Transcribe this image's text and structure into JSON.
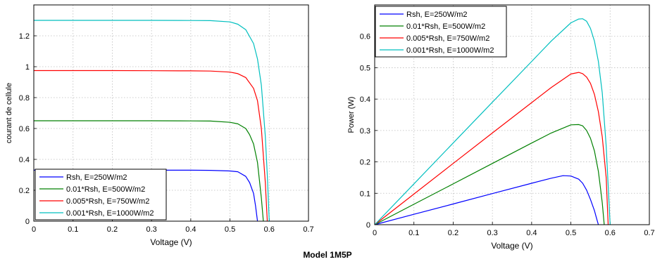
{
  "figure_caption": "Model 1M5P",
  "colors": {
    "series": [
      "#0000ff",
      "#008000",
      "#ff0000",
      "#00bfbf"
    ],
    "grid": "#bdbdbd"
  },
  "chart_data": [
    {
      "type": "line",
      "title": "",
      "xlabel": "Voltage (V)",
      "ylabel": "courant de cellule",
      "xlim": [
        0,
        0.7
      ],
      "ylim": [
        0,
        1.4
      ],
      "x_ticks": [
        "0",
        "0.1",
        "0.2",
        "0.3",
        "0.4",
        "0.5",
        "0.6",
        "0.7"
      ],
      "y_ticks": [
        "0",
        "0.2",
        "0.4",
        "0.6",
        "0.8",
        "1",
        "1.2"
      ],
      "grid": true,
      "legend_position": "bottom-left",
      "series": [
        {
          "name": "Rsh, E=250W/m2",
          "x": [
            0,
            0.1,
            0.2,
            0.3,
            0.4,
            0.45,
            0.5,
            0.52,
            0.54,
            0.55,
            0.56,
            0.565,
            0.57
          ],
          "y": [
            0.33,
            0.33,
            0.33,
            0.33,
            0.33,
            0.329,
            0.325,
            0.32,
            0.29,
            0.25,
            0.18,
            0.1,
            0
          ]
        },
        {
          "name": "0.01*Rsh, E=500W/m2",
          "x": [
            0,
            0.1,
            0.2,
            0.3,
            0.4,
            0.45,
            0.5,
            0.52,
            0.54,
            0.55,
            0.56,
            0.57,
            0.58,
            0.585
          ],
          "y": [
            0.65,
            0.65,
            0.65,
            0.65,
            0.649,
            0.648,
            0.64,
            0.63,
            0.6,
            0.56,
            0.5,
            0.38,
            0.15,
            0
          ]
        },
        {
          "name": "0.005*Rsh, E=750W/m2",
          "x": [
            0,
            0.1,
            0.2,
            0.3,
            0.4,
            0.45,
            0.5,
            0.52,
            0.54,
            0.56,
            0.57,
            0.58,
            0.59,
            0.595
          ],
          "y": [
            0.975,
            0.975,
            0.975,
            0.974,
            0.973,
            0.972,
            0.965,
            0.955,
            0.93,
            0.86,
            0.78,
            0.6,
            0.25,
            0
          ]
        },
        {
          "name": "0.001*Rsh, E=1000W/m2",
          "x": [
            0,
            0.1,
            0.2,
            0.3,
            0.4,
            0.45,
            0.5,
            0.52,
            0.54,
            0.56,
            0.57,
            0.58,
            0.59,
            0.595,
            0.6
          ],
          "y": [
            1.3,
            1.3,
            1.3,
            1.3,
            1.299,
            1.298,
            1.29,
            1.275,
            1.24,
            1.15,
            1.05,
            0.88,
            0.55,
            0.3,
            0
          ]
        }
      ]
    },
    {
      "type": "line",
      "title": "",
      "xlabel": "Voltage (V)",
      "ylabel": "Power (W)",
      "xlim": [
        0,
        0.7
      ],
      "ylim": [
        0,
        0.7
      ],
      "x_ticks": [
        "0",
        "0.1",
        "0.2",
        "0.3",
        "0.4",
        "0.5",
        "0.6",
        "0.7"
      ],
      "y_ticks": [
        "0",
        "0.1",
        "0.2",
        "0.3",
        "0.4",
        "0.5",
        "0.6"
      ],
      "grid": true,
      "legend_position": "top-left",
      "series": [
        {
          "name": "Rsh, E=250W/m2",
          "x": [
            0,
            0.1,
            0.2,
            0.3,
            0.4,
            0.45,
            0.48,
            0.5,
            0.52,
            0.53,
            0.54,
            0.55,
            0.56,
            0.565,
            0.57
          ],
          "y": [
            0,
            0.033,
            0.066,
            0.099,
            0.132,
            0.148,
            0.156,
            0.155,
            0.145,
            0.132,
            0.11,
            0.08,
            0.045,
            0.022,
            0
          ]
        },
        {
          "name": "0.01*Rsh, E=500W/m2",
          "x": [
            0,
            0.1,
            0.2,
            0.3,
            0.4,
            0.45,
            0.5,
            0.52,
            0.53,
            0.54,
            0.55,
            0.56,
            0.57,
            0.575,
            0.58,
            0.585
          ],
          "y": [
            0,
            0.065,
            0.13,
            0.195,
            0.26,
            0.292,
            0.318,
            0.319,
            0.315,
            0.3,
            0.275,
            0.235,
            0.17,
            0.12,
            0.07,
            0
          ]
        },
        {
          "name": "0.005*Rsh, E=750W/m2",
          "x": [
            0,
            0.1,
            0.2,
            0.3,
            0.4,
            0.45,
            0.5,
            0.52,
            0.53,
            0.54,
            0.55,
            0.56,
            0.57,
            0.58,
            0.59,
            0.595
          ],
          "y": [
            0,
            0.0975,
            0.195,
            0.292,
            0.389,
            0.437,
            0.48,
            0.485,
            0.481,
            0.47,
            0.45,
            0.415,
            0.36,
            0.28,
            0.15,
            0
          ]
        },
        {
          "name": "0.001*Rsh, E=1000W/m2",
          "x": [
            0,
            0.1,
            0.2,
            0.3,
            0.4,
            0.45,
            0.5,
            0.52,
            0.53,
            0.54,
            0.55,
            0.56,
            0.57,
            0.58,
            0.59,
            0.6
          ],
          "y": [
            0,
            0.13,
            0.26,
            0.39,
            0.52,
            0.585,
            0.643,
            0.655,
            0.656,
            0.648,
            0.625,
            0.585,
            0.52,
            0.42,
            0.25,
            0
          ]
        }
      ]
    }
  ]
}
